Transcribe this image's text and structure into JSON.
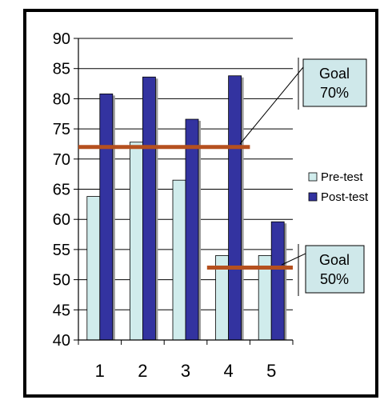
{
  "chart_data": {
    "type": "bar",
    "categories": [
      "1",
      "2",
      "3",
      "4",
      "5"
    ],
    "series": [
      {
        "name": "Pre-test",
        "values": [
          63.8,
          72.8,
          66.5,
          54.0,
          54.0
        ],
        "color": "#d0ecec"
      },
      {
        "name": "Post-test",
        "values": [
          80.8,
          83.6,
          76.6,
          83.8,
          59.6
        ],
        "color": "#3333a0"
      }
    ],
    "ylim": [
      40,
      90
    ],
    "yticks": [
      "40",
      "45",
      "50",
      "55",
      "60",
      "65",
      "70",
      "75",
      "80",
      "85",
      "90"
    ],
    "grid": true,
    "legend": "right",
    "goals": [
      {
        "label_line1": "Goal",
        "label_line2": "70%",
        "value": 72,
        "from_category": 1,
        "to_category": 4,
        "color": "#b5501f"
      },
      {
        "label_line1": "Goal",
        "label_line2": "50%",
        "value": 52,
        "from_category": 4,
        "to_category": 5,
        "color": "#b5501f"
      }
    ],
    "callout_color": "#cfe8ea"
  }
}
